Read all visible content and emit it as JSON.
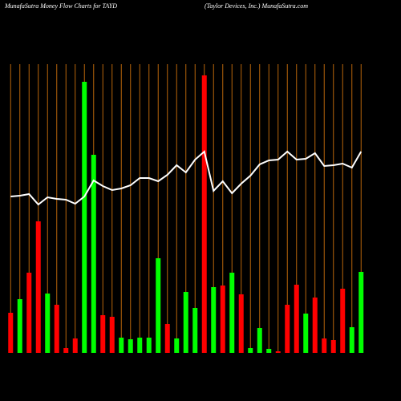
{
  "chart_data": {
    "type": "bar",
    "title": "MunafaSutra  Money Flow  Charts for TAYD",
    "subtitle": "(Taylor Devices,  Inc.) MunafaSutra.com",
    "categories": [
      null,
      null,
      null,
      null,
      null,
      null,
      null,
      null,
      null,
      null,
      null,
      null,
      null,
      null,
      null,
      null,
      null,
      null,
      null,
      null,
      null,
      null,
      null,
      null,
      null,
      null,
      null,
      null,
      null,
      null,
      null,
      null,
      null,
      null,
      null,
      null,
      null,
      null,
      null
    ],
    "values": [
      50,
      67,
      100,
      164,
      74,
      60,
      6,
      18,
      338,
      247,
      47,
      45,
      19,
      17,
      19,
      19,
      118,
      36,
      18,
      76,
      56,
      346,
      82,
      84,
      100,
      73,
      6,
      31,
      5,
      2,
      60,
      85,
      49,
      69,
      18,
      16,
      80,
      32,
      101
    ],
    "colors": [
      "#ff0000",
      "#00ff00",
      "#ff0000",
      "#ff0000",
      "#00ff00",
      "#ff0000",
      "#ff0000",
      "#ff0000",
      "#00ff00",
      "#00ff00",
      "#ff0000",
      "#ff0000",
      "#00ff00",
      "#00ff00",
      "#00ff00",
      "#00ff00",
      "#00ff00",
      "#ff0000",
      "#00ff00",
      "#00ff00",
      "#00ff00",
      "#ff0000",
      "#00ff00",
      "#ff0000",
      "#00ff00",
      "#ff0000",
      "#00ff00",
      "#00ff00",
      "#00ff00",
      "#ff0000",
      "#ff0000",
      "#ff0000",
      "#00ff00",
      "#ff0000",
      "#ff0000",
      "#ff0000",
      "#ff0000",
      "#00ff00",
      "#00ff00"
    ],
    "line": {
      "color": "#ffffff",
      "values": [
        195,
        196,
        198,
        185,
        194,
        192,
        191,
        186,
        195,
        215,
        208,
        203,
        205,
        209,
        218,
        218,
        214,
        222,
        234,
        225,
        241,
        251,
        202,
        214,
        199,
        211,
        221,
        235,
        240,
        241,
        251,
        241,
        242,
        249,
        233,
        234,
        236,
        231,
        251
      ]
    },
    "gridline_color": "#b8650a",
    "ylim": [
      0,
      350
    ]
  }
}
